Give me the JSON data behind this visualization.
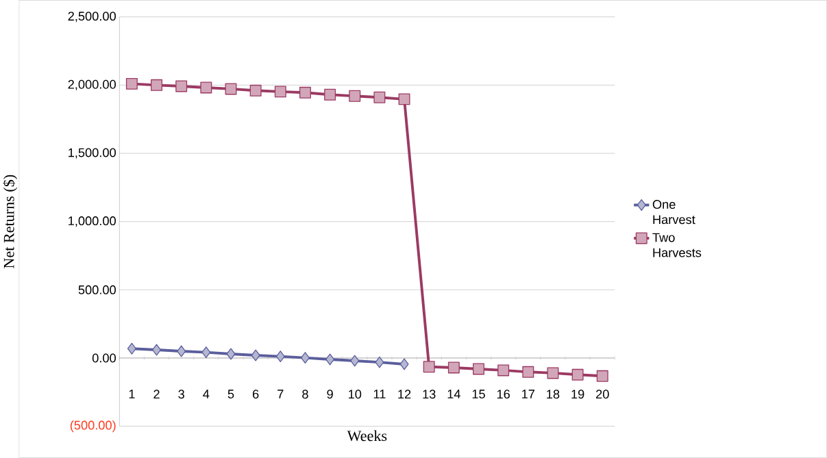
{
  "chart_data": {
    "type": "line",
    "xlabel": "Weeks",
    "ylabel": "Net Returns ($)",
    "categories": [
      "1",
      "2",
      "3",
      "4",
      "5",
      "6",
      "7",
      "8",
      "9",
      "10",
      "11",
      "12",
      "13",
      "14",
      "15",
      "16",
      "17",
      "18",
      "19",
      "20"
    ],
    "series": [
      {
        "name": "One Harvest",
        "color": "#5a5e9c",
        "marker": "diamond",
        "values": [
          69,
          60,
          50,
          42,
          30,
          20,
          12,
          2,
          -10,
          -20,
          -31,
          -45,
          null,
          null,
          null,
          null,
          null,
          null,
          null,
          null
        ]
      },
      {
        "name": "Two Harvests",
        "color": "#9b3a63",
        "marker": "square",
        "values": [
          2010,
          2000,
          1992,
          1982,
          1972,
          1960,
          1952,
          1945,
          1930,
          1920,
          1910,
          1897,
          -64,
          -70,
          -80,
          -90,
          -102,
          -110,
          -122,
          -132
        ]
      }
    ],
    "ylim": [
      -500,
      2500
    ],
    "yticks": [
      {
        "value": -500,
        "label": "(500.00)"
      },
      {
        "value": 0,
        "label": "0.00"
      },
      {
        "value": 500,
        "label": "500.00"
      },
      {
        "value": 1000,
        "label": "1,000.00"
      },
      {
        "value": 1500,
        "label": "1,500.00"
      },
      {
        "value": 2000,
        "label": "2,000.00"
      },
      {
        "value": 2500,
        "label": "2,500.00"
      }
    ],
    "grid": "y",
    "legend": "right"
  }
}
